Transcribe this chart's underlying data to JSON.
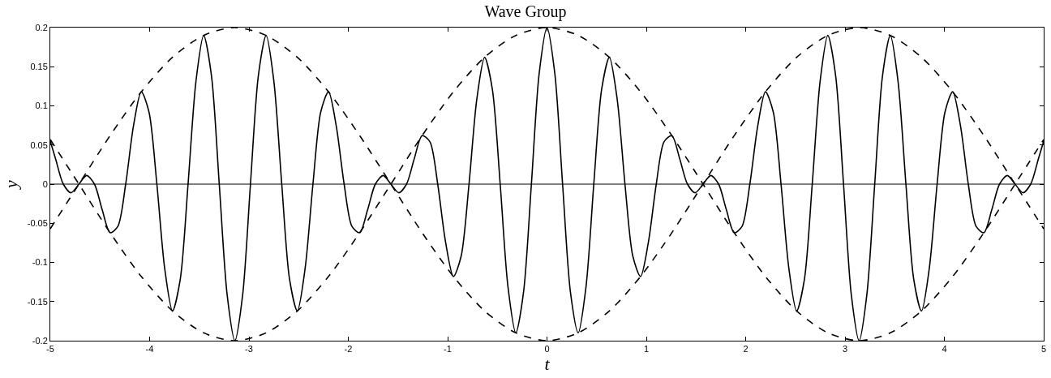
{
  "chart_data": {
    "type": "line",
    "title": "Wave Group",
    "xlabel": "t",
    "ylabel": "y",
    "xlim": [
      -5,
      5
    ],
    "xticks": [
      -5,
      -4,
      -3,
      -2,
      -1,
      0,
      1,
      2,
      3,
      4,
      5
    ],
    "ylim": [
      -0.2,
      0.2
    ],
    "yticks": [
      -0.2,
      -0.15,
      -0.1,
      -0.05,
      0,
      0.05,
      0.1,
      0.15,
      0.2
    ],
    "grid": false,
    "ref_lines": [
      {
        "axis": "y",
        "value": 0,
        "color": "#000000",
        "line_style": "solid"
      }
    ],
    "series": [
      {
        "color": "#000000",
        "line_style": "solid",
        "x": [
          -5,
          -4.948,
          -4.869,
          -4.791,
          -4.712,
          -4.634,
          -4.555,
          -4.477,
          -4.398,
          -4.32,
          -4.241,
          -4.163,
          -4.084,
          -4.006,
          -3.927,
          -3.848,
          -3.77,
          -3.691,
          -3.613,
          -3.534,
          -3.456,
          -3.377,
          -3.299,
          -3.22,
          -3.142,
          -3.063,
          -2.985,
          -2.906,
          -2.827,
          -2.749,
          -2.67,
          -2.592,
          -2.513,
          -2.435,
          -2.356,
          -2.278,
          -2.199,
          -2.121,
          -2.042,
          -1.963,
          -1.885,
          -1.806,
          -1.728,
          -1.649,
          -1.571,
          -1.492,
          -1.414,
          -1.335,
          -1.257,
          -1.178,
          -1.1,
          -1.021,
          -0.942,
          -0.864,
          -0.785,
          -0.707,
          -0.628,
          -0.55,
          -0.471,
          -0.393,
          -0.314,
          -0.236,
          -0.157,
          -0.079,
          0,
          0.079,
          0.157,
          0.236,
          0.314,
          0.393,
          0.471,
          0.55,
          0.628,
          0.707,
          0.785,
          0.864,
          0.942,
          1.021,
          1.1,
          1.178,
          1.257,
          1.335,
          1.414,
          1.492,
          1.571,
          1.649,
          1.728,
          1.806,
          1.885,
          1.963,
          2.042,
          2.121,
          2.199,
          2.278,
          2.356,
          2.435,
          2.513,
          2.592,
          2.67,
          2.749,
          2.827,
          2.906,
          2.985,
          3.063,
          3.142,
          3.22,
          3.299,
          3.377,
          3.456,
          3.534,
          3.613,
          3.691,
          3.77,
          3.848,
          3.927,
          4.006,
          4.084,
          4.163,
          4.241,
          4.32,
          4.398,
          4.477,
          4.555,
          4.634,
          4.712,
          4.791,
          4.869,
          4.948,
          5
        ],
        "values": [
          0.055,
          0.033,
          0,
          -0.011,
          0,
          0.011,
          0,
          -0.033,
          -0.062,
          -0.054,
          0,
          0.074,
          0.118,
          0.092,
          0,
          -0.108,
          -0.162,
          -0.121,
          0,
          0.131,
          0.19,
          0.138,
          0,
          -0.141,
          -0.2,
          -0.141,
          0,
          0.138,
          0.19,
          0.131,
          0,
          -0.121,
          -0.162,
          -0.108,
          0,
          0.092,
          0.118,
          0.074,
          0,
          -0.054,
          -0.062,
          -0.033,
          0,
          0.011,
          0,
          -0.011,
          0,
          0.033,
          0.062,
          0.054,
          0,
          -0.074,
          -0.118,
          -0.092,
          0,
          0.108,
          0.162,
          0.121,
          0,
          -0.131,
          -0.19,
          -0.138,
          0,
          0.141,
          0.2,
          0.141,
          0,
          -0.138,
          -0.19,
          -0.131,
          0,
          0.121,
          0.162,
          0.108,
          0,
          -0.092,
          -0.118,
          -0.074,
          0,
          0.054,
          0.062,
          0.033,
          0,
          -0.011,
          0,
          0.011,
          0,
          -0.033,
          -0.062,
          -0.054,
          0,
          0.074,
          0.118,
          0.092,
          0,
          -0.108,
          -0.162,
          -0.121,
          0,
          0.131,
          0.19,
          0.138,
          0,
          -0.141,
          -0.2,
          -0.141,
          0,
          0.138,
          0.19,
          0.131,
          0,
          -0.121,
          -0.162,
          -0.108,
          0,
          0.092,
          0.118,
          0.074,
          0,
          -0.054,
          -0.062,
          -0.033,
          0,
          0.011,
          0,
          -0.011,
          0,
          0.033,
          0.055
        ]
      },
      {
        "color": "#000000",
        "line_style": "dashed",
        "x": [
          -5,
          -4.712,
          -4.398,
          -4.084,
          -3.77,
          -3.456,
          -3.142,
          -2.827,
          -2.513,
          -2.199,
          -1.885,
          -1.571,
          -1.257,
          -0.942,
          -0.628,
          -0.314,
          0,
          0.314,
          0.628,
          0.942,
          1.257,
          1.571,
          1.885,
          2.199,
          2.513,
          2.827,
          3.142,
          3.456,
          3.77,
          4.084,
          4.398,
          4.712,
          5
        ],
        "values": [
          0.057,
          0,
          -0.062,
          -0.118,
          -0.162,
          -0.19,
          -0.2,
          -0.19,
          -0.162,
          -0.118,
          -0.062,
          0,
          0.062,
          0.118,
          0.162,
          0.19,
          0.2,
          0.19,
          0.162,
          0.118,
          0.062,
          0,
          -0.062,
          -0.118,
          -0.162,
          -0.19,
          -0.2,
          -0.19,
          -0.162,
          -0.118,
          -0.062,
          0,
          0.057
        ]
      },
      {
        "color": "#000000",
        "line_style": "dashed",
        "x": [
          -5,
          -4.712,
          -4.398,
          -4.084,
          -3.77,
          -3.456,
          -3.142,
          -2.827,
          -2.513,
          -2.199,
          -1.885,
          -1.571,
          -1.257,
          -0.942,
          -0.628,
          -0.314,
          0,
          0.314,
          0.628,
          0.942,
          1.257,
          1.571,
          1.885,
          2.199,
          2.513,
          2.827,
          3.142,
          3.456,
          3.77,
          4.084,
          4.398,
          4.712,
          5
        ],
        "values": [
          -0.057,
          0,
          0.062,
          0.118,
          0.162,
          0.19,
          0.2,
          0.19,
          0.162,
          0.118,
          0.062,
          0,
          -0.062,
          -0.118,
          -0.162,
          -0.19,
          -0.2,
          -0.19,
          -0.162,
          -0.118,
          -0.062,
          0,
          0.062,
          0.118,
          0.162,
          0.19,
          0.2,
          0.19,
          0.162,
          0.118,
          0.062,
          0,
          -0.057
        ]
      }
    ]
  }
}
